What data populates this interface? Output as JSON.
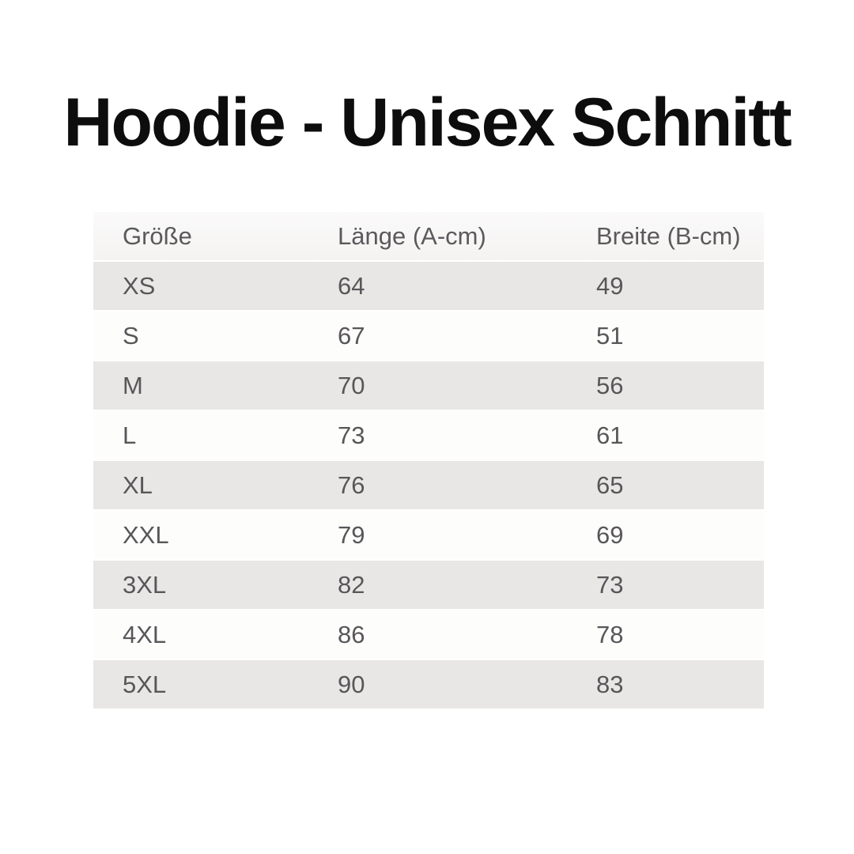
{
  "title": "Hoodie - Unisex Schnitt",
  "colors": {
    "title_text": "#0d0d0d",
    "table_text": "#595659",
    "header_text": "#5c595c",
    "header_bg": "#f6f5f4",
    "row_alt_bg": "#e8e7e6",
    "row_bg": "#fdfdfc",
    "page_bg": "#ffffff"
  },
  "chart_data": {
    "type": "table",
    "title": "Hoodie - Unisex Schnitt",
    "columns": [
      "Größe",
      "Länge (A-cm)",
      "Breite (B-cm)"
    ],
    "units": "cm",
    "rows": [
      [
        "XS",
        "64",
        "49"
      ],
      [
        "S",
        "67",
        "51"
      ],
      [
        "M",
        "70",
        "56"
      ],
      [
        "L",
        "73",
        "61"
      ],
      [
        "XL",
        "76",
        "65"
      ],
      [
        "XXL",
        "79",
        "69"
      ],
      [
        "3XL",
        "82",
        "73"
      ],
      [
        "4XL",
        "86",
        "78"
      ],
      [
        "5XL",
        "90",
        "83"
      ]
    ],
    "layout": {
      "row_striping": "header-light, then alternating gray/white starting gray",
      "grid": "off",
      "legend": "none"
    }
  }
}
